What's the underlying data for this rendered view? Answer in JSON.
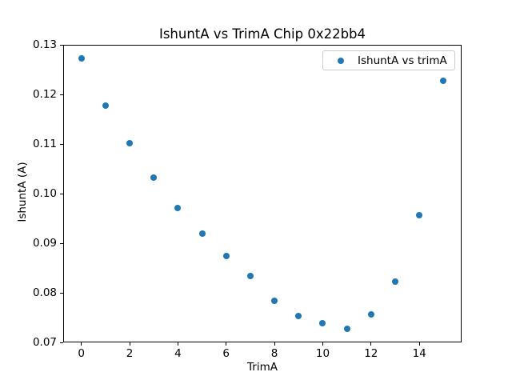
{
  "figure": {
    "background": "#ffffff"
  },
  "chart_data": {
    "type": "scatter",
    "title": "IshuntA vs TrimA Chip 0x22bb4",
    "xlabel": "TrimA",
    "ylabel": "IshuntA (A)",
    "x": [
      0,
      1,
      2,
      3,
      4,
      5,
      6,
      7,
      8,
      9,
      10,
      11,
      12,
      13,
      14,
      15
    ],
    "y": [
      0.1272,
      0.1177,
      0.1102,
      0.1032,
      0.0971,
      0.092,
      0.0874,
      0.0834,
      0.0784,
      0.0754,
      0.0739,
      0.0727,
      0.0756,
      0.0823,
      0.0957,
      0.1227
    ],
    "series": [
      {
        "name": "IshuntA vs trimA"
      }
    ],
    "xlim": [
      -0.75,
      15.75
    ],
    "ylim": [
      0.07,
      0.13
    ],
    "xticks": [
      0,
      2,
      4,
      6,
      8,
      10,
      12,
      14
    ],
    "yticks": [
      0.07,
      0.08,
      0.09,
      0.1,
      0.11,
      0.12,
      0.13
    ],
    "ytick_decimals": 2,
    "marker_color": "#1f77b4",
    "grid": false,
    "legend_position": "upper right"
  },
  "legend": {
    "label": "IshuntA vs trimA"
  }
}
